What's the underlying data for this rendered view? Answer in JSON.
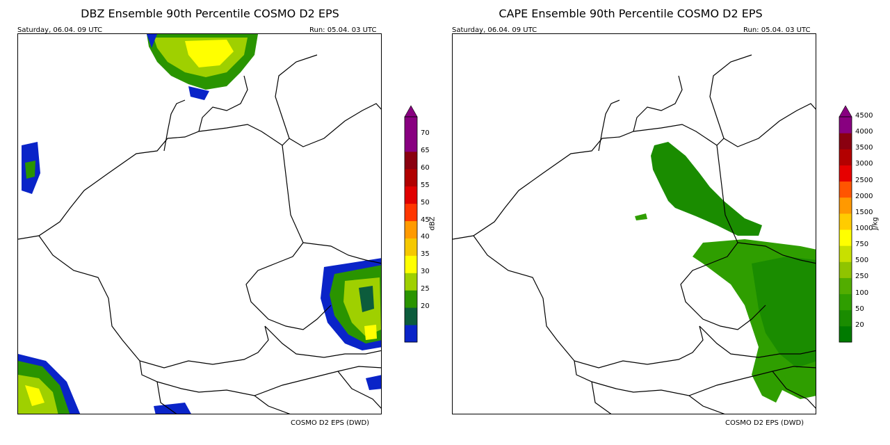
{
  "panels": [
    {
      "title": "DBZ Ensemble 90th Percentile COSMO D2 EPS",
      "valid_time": "Saturday, 06.04. 09 UTC",
      "run": "Run: 05.04. 03 UTC",
      "credit": "COSMO D2 EPS (DWD)",
      "colorbar": {
        "unit": "dBZ",
        "ticks": [
          "20",
          "25",
          "30",
          "35",
          "40",
          "45",
          "50",
          "55",
          "60",
          "65",
          "70"
        ],
        "colors": [
          "#0a24c8",
          "#0c5c3c",
          "#2a9400",
          "#9fd000",
          "#ffff00",
          "#f5c800",
          "#ff9a00",
          "#ff3600",
          "#e00000",
          "#b00000",
          "#8a0010",
          "#880080",
          "#880080"
        ]
      }
    },
    {
      "title": "CAPE Ensemble 90th Percentile COSMO D2 EPS",
      "valid_time": "Saturday, 06.04. 09 UTC",
      "run": "Run: 05.04. 03 UTC",
      "credit": "COSMO D2 EPS (DWD)",
      "colorbar": {
        "unit": "J/kg",
        "ticks": [
          "20",
          "50",
          "100",
          "250",
          "500",
          "750",
          "1000",
          "1500",
          "2000",
          "2500",
          "3000",
          "3500",
          "4000",
          "4500"
        ],
        "colors": [
          "#007a00",
          "#1a8c00",
          "#2f9e00",
          "#52ad00",
          "#8fc400",
          "#c8e000",
          "#ffff00",
          "#ffcc00",
          "#ff9900",
          "#ff5500",
          "#e60000",
          "#b30000",
          "#8a0010",
          "#880080"
        ]
      }
    }
  ]
}
